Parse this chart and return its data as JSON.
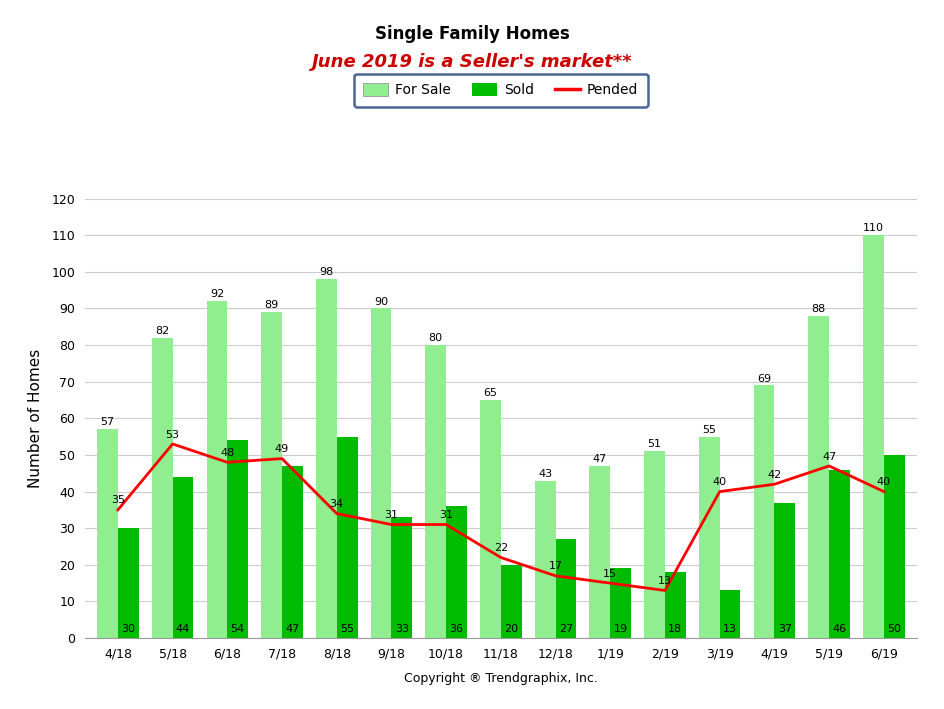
{
  "title": "Single Family Homes",
  "subtitle": "June 2019 is a Seller's market**",
  "xlabel": "Copyright ® Trendgraphix, Inc.",
  "ylabel": "Number of Homes",
  "categories": [
    "4/18",
    "5/18",
    "6/18",
    "7/18",
    "8/18",
    "9/18",
    "10/18",
    "11/18",
    "12/18",
    "1/19",
    "2/19",
    "3/19",
    "4/19",
    "5/19",
    "6/19"
  ],
  "for_sale": [
    57,
    82,
    92,
    89,
    98,
    90,
    80,
    65,
    43,
    47,
    51,
    55,
    69,
    88,
    110
  ],
  "sold": [
    30,
    44,
    54,
    47,
    55,
    33,
    36,
    20,
    27,
    19,
    18,
    13,
    37,
    46,
    50
  ],
  "pended": [
    35,
    53,
    48,
    49,
    34,
    31,
    31,
    22,
    17,
    15,
    13,
    40,
    42,
    47,
    40
  ],
  "for_sale_color": "#90EE90",
  "sold_color": "#00BB00",
  "pended_color": "#FF0000",
  "ylim": [
    0,
    120
  ],
  "yticks": [
    0,
    10,
    20,
    30,
    40,
    50,
    60,
    70,
    80,
    90,
    100,
    110,
    120
  ],
  "title_fontsize": 12,
  "subtitle_fontsize": 13,
  "ylabel_fontsize": 11,
  "xlabel_fontsize": 9,
  "annotation_fontsize": 8,
  "background_color": "#FFFFFF",
  "grid_color": "#CCCCCC",
  "bar_width": 0.38,
  "legend_box_color": "#1F3F7A"
}
